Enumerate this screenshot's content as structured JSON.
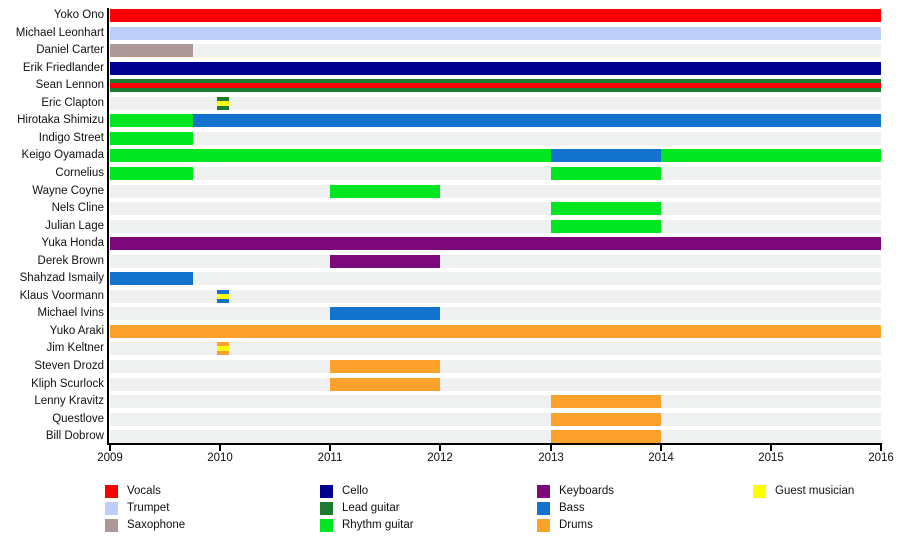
{
  "chart_data": {
    "type": "timeline",
    "title": "",
    "x_axis": {
      "start": 2009,
      "end": 2016,
      "tick_labels": [
        "2009",
        "2010",
        "2011",
        "2012",
        "2013",
        "2014",
        "2015",
        "2016"
      ]
    },
    "layout_hints": {
      "track_color": "#eff0f0",
      "axis_color": "#000000",
      "legend_position": "bottom",
      "grid": "off"
    },
    "roles": {
      "vocals": {
        "label": "Vocals",
        "color": "#fb0105"
      },
      "trumpet": {
        "label": "Trumpet",
        "color": "#bdcef8"
      },
      "saxophone": {
        "label": "Saxophone",
        "color": "#ac9899"
      },
      "cello": {
        "label": "Cello",
        "color": "#00008f"
      },
      "lead-guitar": {
        "label": "Lead guitar",
        "color": "#1b7b33"
      },
      "rhythm-guitar": {
        "label": "Rhythm guitar",
        "color": "#00e621"
      },
      "keyboards": {
        "label": "Keyboards",
        "color": "#7c087c"
      },
      "bass": {
        "label": "Bass",
        "color": "#1272ce"
      },
      "drums": {
        "label": "Drums",
        "color": "#fca12b"
      },
      "guest": {
        "label": "Guest musician",
        "color": "#ffff00"
      }
    },
    "legend_columns": [
      [
        "vocals",
        "trumpet",
        "saxophone"
      ],
      [
        "cello",
        "lead-guitar",
        "rhythm-guitar"
      ],
      [
        "keyboards",
        "bass",
        "drums"
      ],
      [
        "guest"
      ]
    ],
    "rows": [
      {
        "name": "Yoko Ono",
        "segments": [
          {
            "roles": [
              "vocals"
            ],
            "start": 2009,
            "end": 2016
          }
        ]
      },
      {
        "name": "Michael Leonhart",
        "segments": [
          {
            "roles": [
              "trumpet"
            ],
            "start": 2009,
            "end": 2016
          }
        ]
      },
      {
        "name": "Daniel Carter",
        "segments": [
          {
            "roles": [
              "saxophone"
            ],
            "start": 2009,
            "end": 2009.75
          }
        ]
      },
      {
        "name": "Erik Friedlander",
        "segments": [
          {
            "roles": [
              "cello"
            ],
            "start": 2009,
            "end": 2016
          }
        ]
      },
      {
        "name": "Sean Lennon",
        "segments": [
          {
            "roles": [
              "lead-guitar",
              "vocals",
              "lead-guitar"
            ],
            "start": 2009,
            "end": 2016
          }
        ]
      },
      {
        "name": "Eric Clapton",
        "segments": [
          {
            "roles": [
              "lead-guitar",
              "guest",
              "lead-guitar"
            ],
            "start": 2009.97,
            "end": 2010.08
          }
        ]
      },
      {
        "name": "Hirotaka Shimizu",
        "segments": [
          {
            "roles": [
              "rhythm-guitar"
            ],
            "start": 2009,
            "end": 2009.75
          },
          {
            "roles": [
              "bass"
            ],
            "start": 2009.75,
            "end": 2016
          }
        ]
      },
      {
        "name": "Indigo Street",
        "segments": [
          {
            "roles": [
              "rhythm-guitar"
            ],
            "start": 2009,
            "end": 2009.75
          }
        ]
      },
      {
        "name": "Keigo Oyamada",
        "segments": [
          {
            "roles": [
              "rhythm-guitar"
            ],
            "start": 2009,
            "end": 2013
          },
          {
            "roles": [
              "bass"
            ],
            "start": 2013,
            "end": 2014
          },
          {
            "roles": [
              "rhythm-guitar"
            ],
            "start": 2014,
            "end": 2016
          }
        ]
      },
      {
        "name": "Cornelius",
        "segments": [
          {
            "roles": [
              "rhythm-guitar"
            ],
            "start": 2009,
            "end": 2009.75
          },
          {
            "roles": [
              "rhythm-guitar"
            ],
            "start": 2013,
            "end": 2014
          }
        ]
      },
      {
        "name": "Wayne Coyne",
        "segments": [
          {
            "roles": [
              "rhythm-guitar"
            ],
            "start": 2011,
            "end": 2012
          }
        ]
      },
      {
        "name": "Nels Cline",
        "segments": [
          {
            "roles": [
              "rhythm-guitar"
            ],
            "start": 2013,
            "end": 2014
          }
        ]
      },
      {
        "name": "Julian Lage",
        "segments": [
          {
            "roles": [
              "rhythm-guitar"
            ],
            "start": 2013,
            "end": 2014
          }
        ]
      },
      {
        "name": "Yuka Honda",
        "segments": [
          {
            "roles": [
              "keyboards"
            ],
            "start": 2009,
            "end": 2016
          }
        ]
      },
      {
        "name": "Derek Brown",
        "segments": [
          {
            "roles": [
              "keyboards"
            ],
            "start": 2011,
            "end": 2012
          }
        ]
      },
      {
        "name": "Shahzad Ismaily",
        "segments": [
          {
            "roles": [
              "bass"
            ],
            "start": 2009,
            "end": 2009.75
          }
        ]
      },
      {
        "name": "Klaus Voormann",
        "segments": [
          {
            "roles": [
              "bass",
              "guest",
              "bass"
            ],
            "start": 2009.97,
            "end": 2010.08
          }
        ]
      },
      {
        "name": "Michael Ivins",
        "segments": [
          {
            "roles": [
              "bass"
            ],
            "start": 2011,
            "end": 2012
          }
        ]
      },
      {
        "name": "Yuko Araki",
        "segments": [
          {
            "roles": [
              "drums"
            ],
            "start": 2009,
            "end": 2016
          }
        ]
      },
      {
        "name": "Jim Keltner",
        "segments": [
          {
            "roles": [
              "drums",
              "guest",
              "drums"
            ],
            "start": 2009.97,
            "end": 2010.08
          }
        ]
      },
      {
        "name": "Steven Drozd",
        "segments": [
          {
            "roles": [
              "drums"
            ],
            "start": 2011,
            "end": 2012
          }
        ]
      },
      {
        "name": "Kliph Scurlock",
        "segments": [
          {
            "roles": [
              "drums"
            ],
            "start": 2011,
            "end": 2012
          }
        ]
      },
      {
        "name": "Lenny Kravitz",
        "segments": [
          {
            "roles": [
              "drums"
            ],
            "start": 2013,
            "end": 2014
          }
        ]
      },
      {
        "name": "Questlove",
        "segments": [
          {
            "roles": [
              "drums"
            ],
            "start": 2013,
            "end": 2014
          }
        ]
      },
      {
        "name": "Bill Dobrow",
        "segments": [
          {
            "roles": [
              "drums"
            ],
            "start": 2013,
            "end": 2014
          }
        ]
      }
    ]
  }
}
